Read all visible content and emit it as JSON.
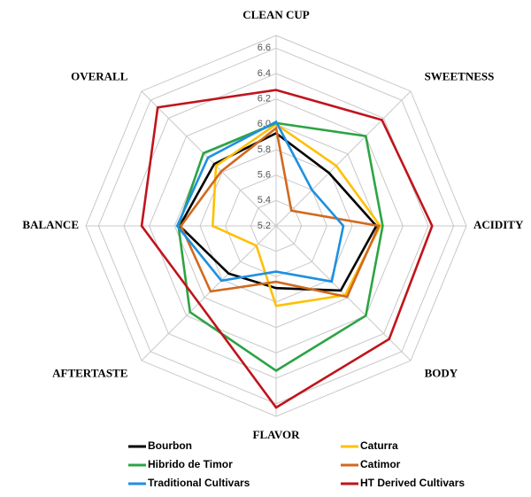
{
  "chart_data": {
    "type": "radar",
    "categories": [
      "CLEAN CUP",
      "SWEETNESS",
      "ACIDITY",
      "BODY",
      "FLAVOR",
      "AFTERTASTE",
      "BALANCE",
      "OVERALL"
    ],
    "rlim": [
      5.2,
      6.7
    ],
    "rticks": [
      5.2,
      5.4,
      5.6,
      5.8,
      {
        "value": 6.0,
        "label": "6.0"
      },
      6.2,
      6.4,
      6.6
    ],
    "grid": true,
    "series": [
      {
        "name": "Bourbon",
        "color": "#000000",
        "values": [
          5.93,
          5.79,
          5.99,
          5.92,
          5.69,
          5.73,
          5.96,
          5.89
        ]
      },
      {
        "name": "Caturra",
        "color": "#ffc000",
        "values": [
          6.0,
          5.87,
          6.02,
          5.97,
          5.83,
          5.42,
          5.7,
          5.87
        ]
      },
      {
        "name": "Hibrido de Timor",
        "color": "#2ca444",
        "values": [
          6.01,
          6.2,
          6.04,
          6.2,
          6.34,
          6.16,
          5.97,
          6.01
        ]
      },
      {
        "name": "Catimor",
        "color": "#d2691e",
        "values": [
          5.97,
          5.37,
          6.01,
          5.99,
          5.64,
          5.93,
          5.95,
          5.81
        ]
      },
      {
        "name": "Traditional Cultivars",
        "color": "#1e90e0",
        "values": [
          6.02,
          5.6,
          5.73,
          5.82,
          5.56,
          5.81,
          5.98,
          5.96
        ]
      },
      {
        "name": "HT Derived Cultivars",
        "color": "#c0141c",
        "values": [
          6.27,
          6.38,
          6.43,
          6.46,
          6.63,
          6.06,
          6.26,
          6.52
        ]
      }
    ]
  }
}
